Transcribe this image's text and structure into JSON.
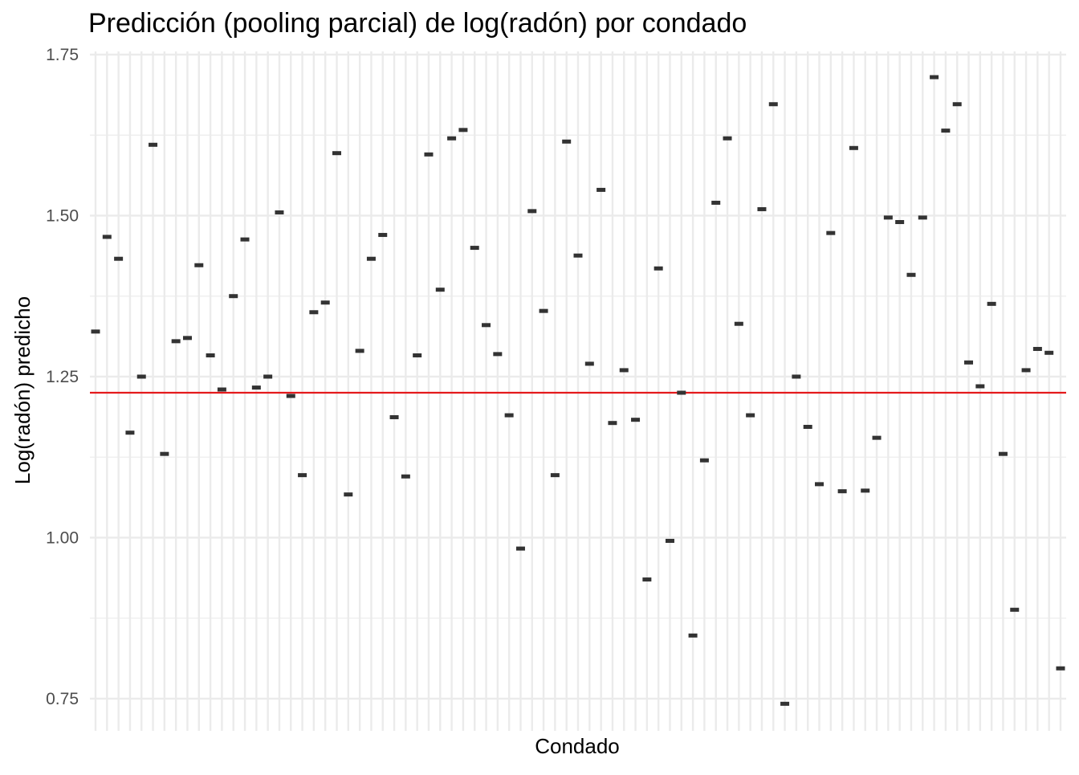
{
  "chart_data": {
    "type": "scatter",
    "title": "Predicción (pooling parcial) de log(radón) por condado",
    "xlabel": "Condado",
    "ylabel": "Log(radón) predicho",
    "ylim": [
      0.7,
      1.755
    ],
    "y_ticks": [
      "0.75",
      "1.00",
      "1.25",
      "1.50",
      "1.75"
    ],
    "y_tick_values": [
      0.75,
      1.0,
      1.25,
      1.5,
      1.75
    ],
    "y_minor_values": [
      0.875,
      1.125,
      1.375,
      1.625
    ],
    "x_tick_labels_shown": false,
    "grid": true,
    "legend": "none",
    "reference_line": {
      "y": 1.225,
      "color": "#e41a1c"
    },
    "marker_color": "#333333",
    "series": [
      {
        "values": [
          1.32,
          1.467,
          1.433,
          1.163,
          1.25,
          1.61,
          1.13,
          1.305,
          1.31,
          1.423,
          1.283,
          1.23,
          1.375,
          1.463,
          1.233,
          1.25,
          1.505,
          1.22,
          1.097,
          1.35,
          1.365,
          1.597,
          1.067,
          1.29,
          1.433,
          1.47,
          1.187,
          1.095,
          1.283,
          1.595,
          1.385,
          1.62,
          1.633,
          1.45,
          1.33,
          1.285,
          1.19,
          0.983,
          1.507,
          1.352,
          1.097,
          1.615,
          1.438,
          1.27,
          1.54,
          1.178,
          1.26,
          1.183,
          0.935,
          1.418,
          0.995,
          1.225,
          0.848,
          1.12,
          1.52,
          1.62,
          1.332,
          1.19,
          1.51,
          1.673,
          0.742,
          1.25,
          1.172,
          1.083,
          1.473,
          1.072,
          1.605,
          1.073,
          1.155,
          1.497,
          1.49,
          1.408,
          1.497,
          1.715,
          1.632,
          1.673,
          1.272,
          1.235,
          1.363,
          1.13,
          0.888,
          1.26,
          1.293,
          1.287,
          0.797
        ]
      }
    ]
  }
}
